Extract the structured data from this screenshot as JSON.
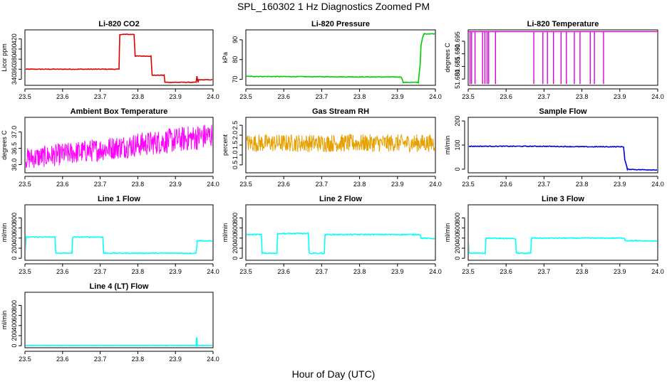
{
  "figure": {
    "title": "SPL_160302  1 Hz Diagnostics Zoomed PM",
    "xlabel": "Hour of Day (UTC)"
  },
  "chart_data": [
    {
      "type": "line",
      "title": "Li-820 CO2",
      "ylabel": "Licor ppm",
      "color": "#dd0000",
      "xlim": [
        23.5,
        24.0
      ],
      "xticks": [
        "23.5",
        "23.6",
        "23.7",
        "23.8",
        "23.9",
        "24.0"
      ],
      "ylim": [
        328,
        438
      ],
      "yticks": [
        "340",
        "360",
        "380",
        "400",
        "420"
      ],
      "noise": 0.6,
      "series": [
        {
          "x": [
            23.5,
            23.75,
            23.752,
            23.79,
            23.793,
            23.835,
            23.838,
            23.87,
            23.872,
            23.955,
            23.957,
            23.96,
            23.962,
            24.0
          ],
          "y": [
            360,
            360,
            429,
            429,
            386,
            386,
            348,
            348,
            334,
            334,
            346,
            334,
            339,
            339
          ]
        }
      ]
    },
    {
      "type": "line",
      "title": "Li-820 Pressure",
      "ylabel": "kPa",
      "color": "#00cc00",
      "xlim": [
        23.5,
        24.0
      ],
      "xticks": [
        "23.5",
        "23.6",
        "23.7",
        "23.8",
        "23.9",
        "24.0"
      ],
      "ylim": [
        67,
        95
      ],
      "yticks": [
        "70",
        "80",
        "90"
      ],
      "noise": 0.15,
      "series": [
        {
          "x": [
            23.5,
            23.75,
            23.91,
            23.915,
            23.955,
            23.96,
            23.962,
            23.966,
            23.97,
            24.0
          ],
          "y": [
            71.5,
            71.3,
            71.2,
            68.5,
            68.5,
            78,
            87,
            91,
            93,
            93
          ]
        }
      ]
    },
    {
      "type": "spikes",
      "title": "Li-820 Temperature",
      "ylabel": "degrees C",
      "color": "#dd00dd",
      "xlim": [
        23.5,
        24.0
      ],
      "xticks": [
        "23.5",
        "23.6",
        "23.7",
        "23.8",
        "23.9",
        "24.0"
      ],
      "ylim": [
        51.6775,
        51.6995
      ],
      "yticks": [
        "51.680",
        "51.685",
        "51.690",
        "51.695"
      ],
      "baseline": 51.6988,
      "spike_to": 51.678,
      "spike_x": [
        23.505,
        23.509,
        23.518,
        23.538,
        23.544,
        23.55,
        23.554,
        23.572,
        23.673,
        23.697,
        23.709,
        23.725,
        23.745,
        23.759,
        23.78,
        23.795,
        23.822,
        23.833,
        23.857
      ]
    },
    {
      "type": "noise",
      "title": "Ambient Box Temperature",
      "ylabel": "degrees C",
      "color": "#ff00ff",
      "xlim": [
        23.5,
        24.0
      ],
      "xticks": [
        "23.5",
        "23.6",
        "23.7",
        "23.8",
        "23.9",
        "24.0"
      ],
      "ylim": [
        35.75,
        37.45
      ],
      "yticks": [
        "36.0",
        "36.5",
        "37.0"
      ],
      "low_start": 35.85,
      "low_end": 36.5,
      "high_start": 36.5,
      "high_end": 37.3
    },
    {
      "type": "noise",
      "title": "Gas Stream RH",
      "ylabel": "percent",
      "color": "#e6a000",
      "xlim": [
        23.5,
        24.0
      ],
      "xticks": [
        "23.5",
        "23.6",
        "23.7",
        "23.8",
        "23.9",
        "24.0"
      ],
      "ylim": [
        0.1,
        2.9
      ],
      "yticks": [
        "0.5",
        "1.0",
        "1.5",
        "2.0",
        "2.5"
      ],
      "low_start": 1.15,
      "low_end": 1.15,
      "high_start": 2.05,
      "high_end": 2.05
    },
    {
      "type": "line",
      "title": "Sample Flow",
      "ylabel": "ml/min",
      "color": "#0000dd",
      "xlim": [
        23.5,
        24.0
      ],
      "xticks": [
        "23.5",
        "23.6",
        "23.7",
        "23.8",
        "23.9",
        "24.0"
      ],
      "ylim": [
        -15,
        215
      ],
      "yticks": [
        "0",
        "100",
        "200"
      ],
      "noise": 1.5,
      "series": [
        {
          "x": [
            23.5,
            23.7,
            23.8,
            23.91,
            23.913,
            23.92,
            23.95,
            24.0
          ],
          "y": [
            95,
            95,
            93,
            93,
            40,
            0,
            -2,
            -3
          ]
        }
      ]
    },
    {
      "type": "line",
      "title": "Line 1 Flow",
      "ylabel": "ml/min",
      "color": "#00ffff",
      "xlim": [
        23.5,
        24.0
      ],
      "xticks": [
        "23.5",
        "23.6",
        "23.7",
        "23.8",
        "23.9",
        "24.0"
      ],
      "ylim": [
        -40,
        1060
      ],
      "yticks": [
        "0",
        "200",
        "400",
        "600",
        "800"
      ],
      "noise": 8,
      "series": [
        {
          "x": [
            23.5,
            23.502,
            23.503,
            23.58,
            23.582,
            23.625,
            23.627,
            23.707,
            23.709,
            23.955,
            23.958,
            24.0
          ],
          "y": [
            100,
            300,
            420,
            420,
            100,
            100,
            420,
            420,
            100,
            100,
            350,
            340
          ]
        }
      ]
    },
    {
      "type": "line",
      "title": "Line 2 Flow",
      "ylabel": "ml/min",
      "color": "#00ffff",
      "xlim": [
        23.5,
        24.0
      ],
      "xticks": [
        "23.5",
        "23.6",
        "23.7",
        "23.8",
        "23.9",
        "24.0"
      ],
      "ylim": [
        -40,
        1060
      ],
      "yticks": [
        "0",
        "200",
        "400",
        "600",
        "800"
      ],
      "noise": 10,
      "series": [
        {
          "x": [
            23.5,
            23.541,
            23.543,
            23.582,
            23.584,
            23.665,
            23.667,
            23.707,
            23.709,
            23.96,
            23.962,
            24.0
          ],
          "y": [
            470,
            470,
            100,
            100,
            490,
            490,
            100,
            100,
            470,
            470,
            400,
            390
          ]
        }
      ]
    },
    {
      "type": "line",
      "title": "Line 3 Flow",
      "ylabel": "ml/min",
      "color": "#00ffff",
      "xlim": [
        23.5,
        24.0
      ],
      "xticks": [
        "23.5",
        "23.6",
        "23.7",
        "23.8",
        "23.9",
        "24.0"
      ],
      "ylim": [
        -40,
        1060
      ],
      "yticks": [
        "0",
        "200",
        "400",
        "600",
        "800"
      ],
      "noise": 8,
      "series": [
        {
          "x": [
            23.5,
            23.502,
            23.504,
            23.545,
            23.547,
            23.625,
            23.627,
            23.665,
            23.667,
            23.912,
            23.914,
            24.0
          ],
          "y": [
            410,
            100,
            100,
            100,
            400,
            390,
            100,
            100,
            400,
            400,
            350,
            340
          ]
        }
      ]
    },
    {
      "type": "line",
      "title": "Line 4 (LT) Flow",
      "ylabel": "ml/min",
      "color": "#00ffff",
      "xlim": [
        23.5,
        24.0
      ],
      "xticks": [
        "23.5",
        "23.6",
        "23.7",
        "23.8",
        "23.9",
        "24.0"
      ],
      "ylim": [
        -40,
        1060
      ],
      "yticks": [
        "0",
        "200",
        "400",
        "600",
        "800"
      ],
      "noise": 2,
      "series": [
        {
          "x": [
            23.5,
            23.955,
            23.956,
            23.957,
            23.958,
            24.0
          ],
          "y": [
            5,
            5,
            150,
            150,
            5,
            5
          ]
        }
      ]
    }
  ]
}
